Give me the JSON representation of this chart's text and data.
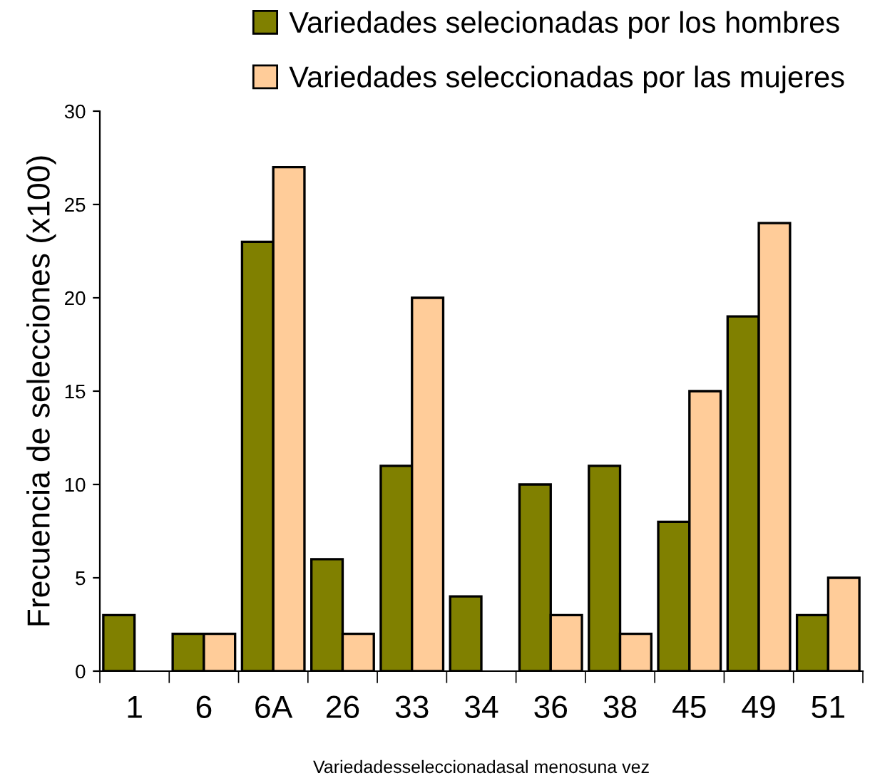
{
  "chart_data": {
    "type": "bar",
    "xlabel": "Variedadesseleccionadasal menosuna vez",
    "ylabel": "Frecuencia de selecciones (x100)",
    "categories": [
      "1",
      "6",
      "6A",
      "26",
      "33",
      "34",
      "36",
      "38",
      "45",
      "49",
      "51"
    ],
    "series": [
      {
        "name": "Variedades selecionadas por los hombres",
        "color": "#808000",
        "values": [
          3,
          2,
          23,
          6,
          11,
          4,
          10,
          11,
          8,
          19,
          3
        ]
      },
      {
        "name": "Variedades seleccionadas por las mujeres",
        "color": "#ffcc99",
        "values": [
          null,
          2,
          27,
          2,
          20,
          null,
          3,
          2,
          15,
          24,
          5
        ]
      }
    ],
    "ylim": [
      0,
      30
    ],
    "yticks": [
      0,
      5,
      10,
      15,
      20,
      25,
      30
    ],
    "grid": false,
    "legend": "top right"
  }
}
